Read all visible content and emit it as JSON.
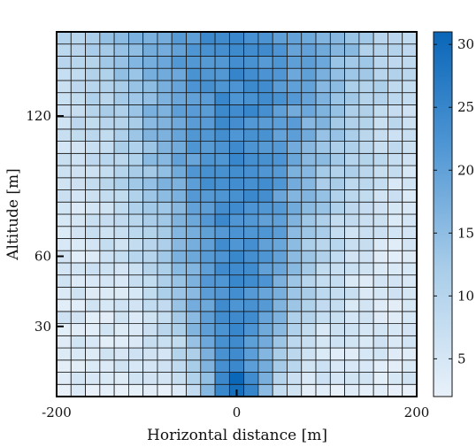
{
  "chart_data": {
    "type": "heatmap",
    "title": "",
    "xlabel": "Horizontal distance [m]",
    "ylabel": "Altitude [m]",
    "xlim": [
      -200,
      200
    ],
    "ylim": [
      0,
      156
    ],
    "xticks": [
      -200,
      0,
      200
    ],
    "xtick_labels": [
      "-200",
      "0",
      "200"
    ],
    "yticks": [
      30,
      60,
      120
    ],
    "ytick_labels": [
      "30",
      "60",
      "120"
    ],
    "grid": {
      "nx": 25,
      "ny": 30,
      "cell_width": 16,
      "cell_height": 5.2
    },
    "colorbar": {
      "min": 2,
      "max": 31,
      "ticks": [
        5,
        10,
        15,
        20,
        25,
        30
      ],
      "tick_labels": [
        "5",
        "10",
        "15",
        "20",
        "25",
        "30"
      ],
      "color_low": "#e8f1fa",
      "color_high": "#0a66b8"
    },
    "values_description": "rows ordered from bottom (altitude 0) to top; columns from x=-200 to x=200"
  }
}
